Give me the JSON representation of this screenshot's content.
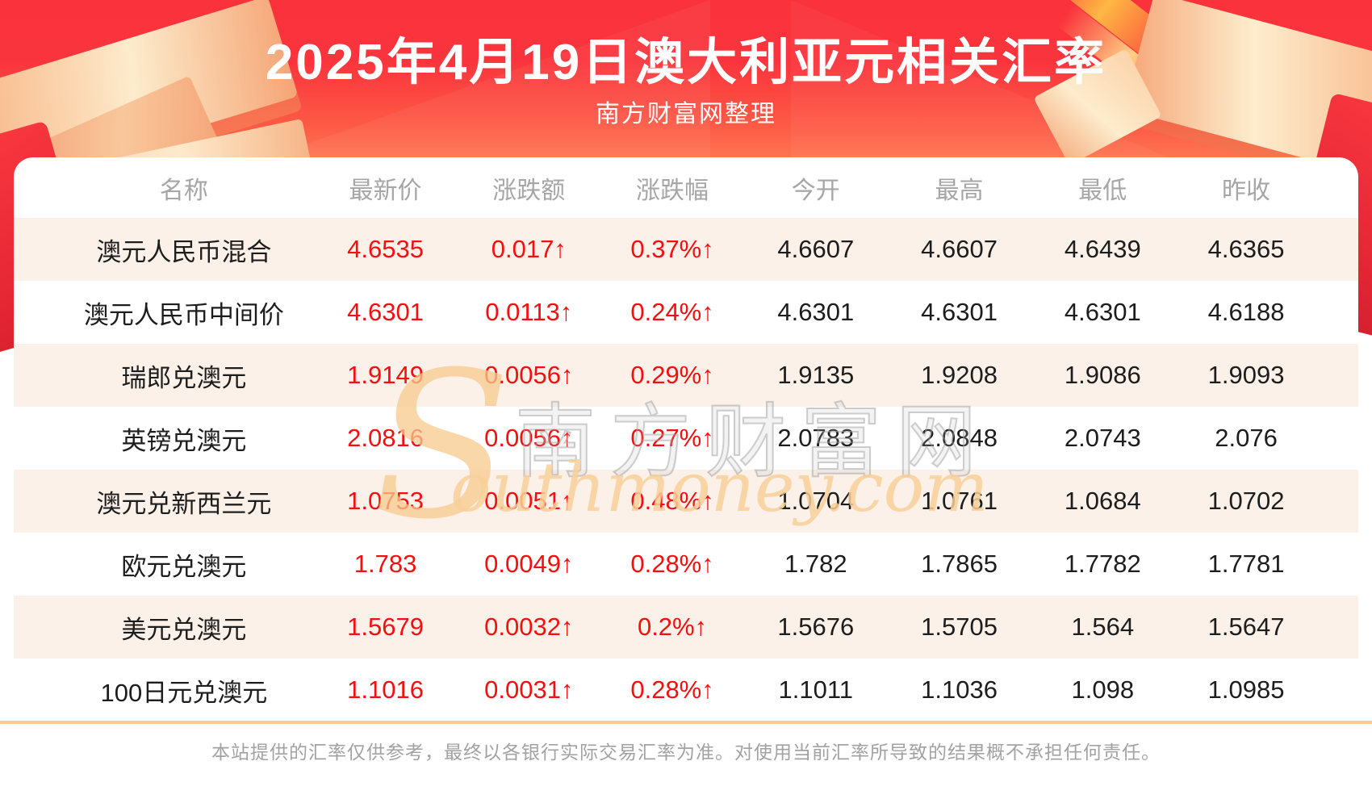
{
  "header": {
    "title": "2025年4月19日澳大利亚元相关汇率",
    "subtitle": "南方财富网整理"
  },
  "table": {
    "columns": [
      "名称",
      "最新价",
      "涨跌额",
      "涨跌幅",
      "今开",
      "最高",
      "最低",
      "昨收"
    ],
    "rows": [
      [
        "澳元人民币混合",
        "4.6535",
        "0.017↑",
        "0.37%↑",
        "4.6607",
        "4.6607",
        "4.6439",
        "4.6365"
      ],
      [
        "澳元人民币中间价",
        "4.6301",
        "0.0113↑",
        "0.24%↑",
        "4.6301",
        "4.6301",
        "4.6301",
        "4.6188"
      ],
      [
        "瑞郎兑澳元",
        "1.9149",
        "0.0056↑",
        "0.29%↑",
        "1.9135",
        "1.9208",
        "1.9086",
        "1.9093"
      ],
      [
        "英镑兑澳元",
        "2.0816",
        "0.0056↑",
        "0.27%↑",
        "2.0783",
        "2.0848",
        "2.0743",
        "2.076"
      ],
      [
        "澳元兑新西兰元",
        "1.0753",
        "0.0051↑",
        "0.48%↑",
        "1.0704",
        "1.0761",
        "1.0684",
        "1.0702"
      ],
      [
        "欧元兑澳元",
        "1.783",
        "0.0049↑",
        "0.28%↑",
        "1.782",
        "1.7865",
        "1.7782",
        "1.7781"
      ],
      [
        "美元兑澳元",
        "1.5679",
        "0.0032↑",
        "0.2%↑",
        "1.5676",
        "1.5705",
        "1.564",
        "1.5647"
      ],
      [
        "100日元兑澳元",
        "1.1016",
        "0.0031↑",
        "0.28%↑",
        "1.1011",
        "1.1036",
        "1.098",
        "1.0985"
      ]
    ]
  },
  "watermark": {
    "initial": "S",
    "cjk": "南方财富网",
    "latin": "outhmoney.com"
  },
  "footer": {
    "disclaimer": "本站提供的汇率仅供参考，最终以各银行实际交易汇率为准。对使用当前汇率所导致的结果概不承担任何责任。"
  },
  "colors": {
    "hero_red_top": "#f92737",
    "hero_red_bottom": "#ff9a68",
    "row_alt_pink": "#fbf1e9",
    "value_red": "#f70e0e",
    "value_black": "#1d1d1d",
    "header_gray": "#a6a6a6",
    "divider_orange": "#f8cb94"
  }
}
